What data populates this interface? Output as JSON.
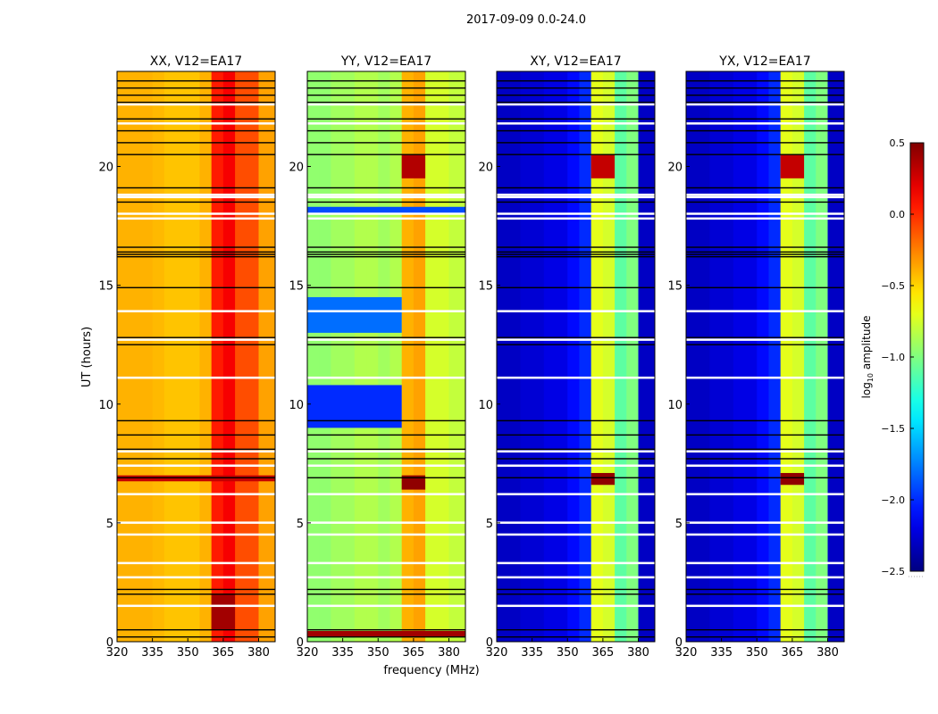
{
  "chart_data": {
    "type": "heatmap",
    "title": "2017-09-09 0.0-24.0",
    "xlabel": "frequency (MHz)",
    "ylabel": "UT (hours)",
    "xlim": [
      320,
      387
    ],
    "ylim": [
      0,
      24
    ],
    "xticks": [
      "320",
      "335",
      "350",
      "365",
      "380"
    ],
    "xtick_values": [
      320,
      335,
      350,
      365,
      380
    ],
    "yticks": [
      "0",
      "5",
      "10",
      "15",
      "20"
    ],
    "ytick_values": [
      0,
      5,
      10,
      15,
      20
    ],
    "freq_bins_MHz": [
      320,
      325,
      330,
      335,
      340,
      345,
      350,
      355,
      360,
      365,
      370,
      375,
      380,
      387
    ],
    "colorbar": {
      "label": "log10 amplitude",
      "colormap": "jet",
      "range": [
        -2.5,
        0.5
      ],
      "ticks": [
        "0.5",
        "0.0",
        "−0.5",
        "−1.0",
        "−1.5",
        "−2.0",
        "−2.5"
      ],
      "tick_values": [
        0.5,
        0.0,
        -0.5,
        -1.0,
        -1.5,
        -2.0,
        -2.5
      ]
    },
    "flagged_black_hours": [
      0.2,
      0.5,
      2.0,
      2.2,
      6.9,
      7.7,
      8.1,
      8.7,
      9.3,
      12.5,
      12.8,
      14.9,
      16.2,
      16.3,
      16.4,
      16.6,
      18.5,
      19.1,
      20.5,
      21.0,
      21.5,
      22.0,
      22.7,
      23.0,
      23.3,
      23.6
    ],
    "flagged_white_hours": [
      1.5,
      2.7,
      3.3,
      4.5,
      5.0,
      6.2,
      7.4,
      8.0,
      11.1,
      12.7,
      13.9,
      17.8,
      18.0,
      18.7,
      18.8,
      21.8,
      22.6
    ],
    "panels": [
      {
        "title": "XX, V12=EA17",
        "values": [
          -0.4,
          -0.4,
          -0.4,
          -0.42,
          -0.45,
          -0.45,
          -0.45,
          -0.4,
          0.05,
          0.15,
          -0.1,
          -0.1,
          -0.35
        ],
        "time_bands": [
          {
            "t0": 6.75,
            "t1": 7.0,
            "f0": 320,
            "f1": 387,
            "value": 0.3
          },
          {
            "t0": 0.5,
            "t1": 2.0,
            "f0": 360,
            "f1": 370,
            "value": 0.4
          }
        ]
      },
      {
        "title": "YY, V12=EA17",
        "values": [
          -0.95,
          -0.95,
          -0.9,
          -0.9,
          -0.85,
          -0.85,
          -0.9,
          -0.85,
          -0.4,
          -0.35,
          -0.75,
          -0.75,
          -0.8
        ],
        "time_bands": [
          {
            "t0": 9.0,
            "t1": 10.8,
            "f0": 320,
            "f1": 360,
            "value": -2.0
          },
          {
            "t0": 13.0,
            "t1": 14.5,
            "f0": 320,
            "f1": 360,
            "value": -1.8
          },
          {
            "t0": 18.0,
            "t1": 18.3,
            "f0": 320,
            "f1": 387,
            "value": -1.9
          },
          {
            "t0": 0.2,
            "t1": 0.45,
            "f0": 320,
            "f1": 387,
            "value": 0.4
          },
          {
            "t0": 6.4,
            "t1": 7.0,
            "f0": 360,
            "f1": 370,
            "value": 0.45
          },
          {
            "t0": 19.5,
            "t1": 20.5,
            "f0": 360,
            "f1": 370,
            "value": 0.35
          }
        ]
      },
      {
        "title": "XY, V12=EA17",
        "values": [
          -2.3,
          -2.3,
          -2.25,
          -2.25,
          -2.2,
          -2.2,
          -2.1,
          -2.0,
          -0.7,
          -0.75,
          -1.1,
          -1.0,
          -2.3
        ],
        "time_bands": [
          {
            "t0": 6.6,
            "t1": 7.1,
            "f0": 360,
            "f1": 370,
            "value": 0.45
          },
          {
            "t0": 19.5,
            "t1": 20.5,
            "f0": 360,
            "f1": 370,
            "value": 0.3
          }
        ]
      },
      {
        "title": "YX, V12=EA17",
        "values": [
          -2.3,
          -2.3,
          -2.25,
          -2.25,
          -2.2,
          -2.2,
          -2.1,
          -2.0,
          -0.7,
          -0.75,
          -1.1,
          -1.0,
          -2.3
        ],
        "time_bands": [
          {
            "t0": 6.6,
            "t1": 7.1,
            "f0": 360,
            "f1": 370,
            "value": 0.45
          },
          {
            "t0": 19.5,
            "t1": 20.5,
            "f0": 360,
            "f1": 370,
            "value": 0.3
          }
        ]
      }
    ]
  }
}
